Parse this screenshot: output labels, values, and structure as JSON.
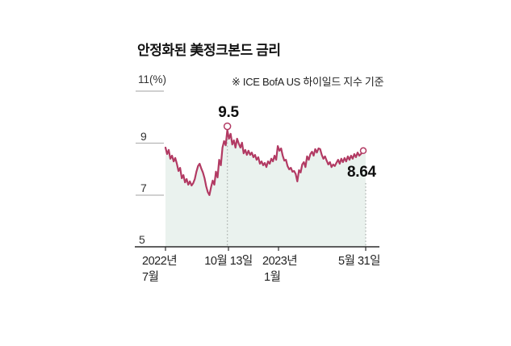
{
  "title": "안정화된 美정크본드 금리",
  "note": "※ ICE BofA US 하이일드 지수 기준",
  "y_axis": {
    "top_label": "11(%)",
    "ticks": {
      "t9": "9",
      "t7": "7",
      "t5": "5"
    }
  },
  "x_axis": {
    "labels": [
      {
        "line1": "2022년",
        "line2": "7월"
      },
      {
        "line1": "10월 13일",
        "line2": ""
      },
      {
        "line1": "2023년",
        "line2": "1월"
      },
      {
        "line1": "5월 31일",
        "line2": ""
      }
    ]
  },
  "annotations": {
    "peak": "9.5",
    "end": "8.64"
  },
  "colors": {
    "line": "#b23a63",
    "fill": "#eaf2ee",
    "dotted": "#b0b5b2",
    "axis": "#2b2b2b",
    "gridtick": "#b5b5b5",
    "marker_fill": "#ffffff"
  },
  "chart_data": {
    "type": "area",
    "title": "안정화된 美정크본드 금리",
    "subtitle": "※ ICE BofA US 하이일드 지수 기준",
    "unit": "%",
    "ylim": [
      5,
      11
    ],
    "yticks": [
      5,
      7,
      9,
      11
    ],
    "x_tick_labels": [
      "2022년 7월",
      "10월 13일",
      "2023년 1월",
      "5월 31일"
    ],
    "annotations": [
      {
        "label": "9.5",
        "at": "10월 13일",
        "value": 9.5
      },
      {
        "label": "8.64",
        "at": "5월 31일",
        "value": 8.64
      }
    ],
    "legend": "none",
    "grid": "off",
    "series": [
      {
        "name": "ICE BofA US 하이일드 지수",
        "values": [
          8.82,
          8.57,
          8.73,
          8.39,
          8.51,
          8.29,
          8.42,
          8.2,
          7.92,
          8.04,
          7.64,
          7.76,
          7.48,
          7.61,
          7.39,
          7.52,
          7.36,
          7.45,
          7.61,
          7.89,
          8.11,
          8.2,
          8.01,
          7.86,
          7.64,
          7.33,
          7.11,
          6.99,
          7.3,
          7.55,
          7.39,
          7.89,
          7.67,
          8.35,
          8.14,
          8.82,
          9.07,
          8.91,
          9.5,
          9.16,
          9.35,
          8.94,
          9.1,
          8.82,
          9.16,
          8.98,
          8.82,
          9.01,
          8.6,
          8.73,
          8.54,
          8.7,
          8.54,
          8.63,
          8.45,
          8.54,
          8.35,
          8.45,
          8.2,
          8.29,
          8.14,
          8.23,
          8.07,
          8.29,
          8.2,
          8.39,
          8.29,
          8.51,
          8.35,
          8.88,
          8.7,
          8.79,
          8.51,
          8.32,
          8.35,
          8.11,
          7.98,
          8.04,
          7.89,
          7.92,
          7.8,
          7.52,
          7.95,
          7.86,
          8.17,
          8.26,
          8.07,
          8.48,
          8.35,
          8.57,
          8.66,
          8.51,
          8.76,
          8.63,
          8.79,
          8.76,
          8.54,
          8.39,
          8.48,
          8.32,
          8.17,
          8.26,
          8.07,
          8.17,
          8.11,
          8.23,
          8.35,
          8.2,
          8.39,
          8.26,
          8.42,
          8.29,
          8.48,
          8.35,
          8.51,
          8.39,
          8.57,
          8.45,
          8.63,
          8.51,
          8.57,
          8.64
        ]
      }
    ]
  }
}
